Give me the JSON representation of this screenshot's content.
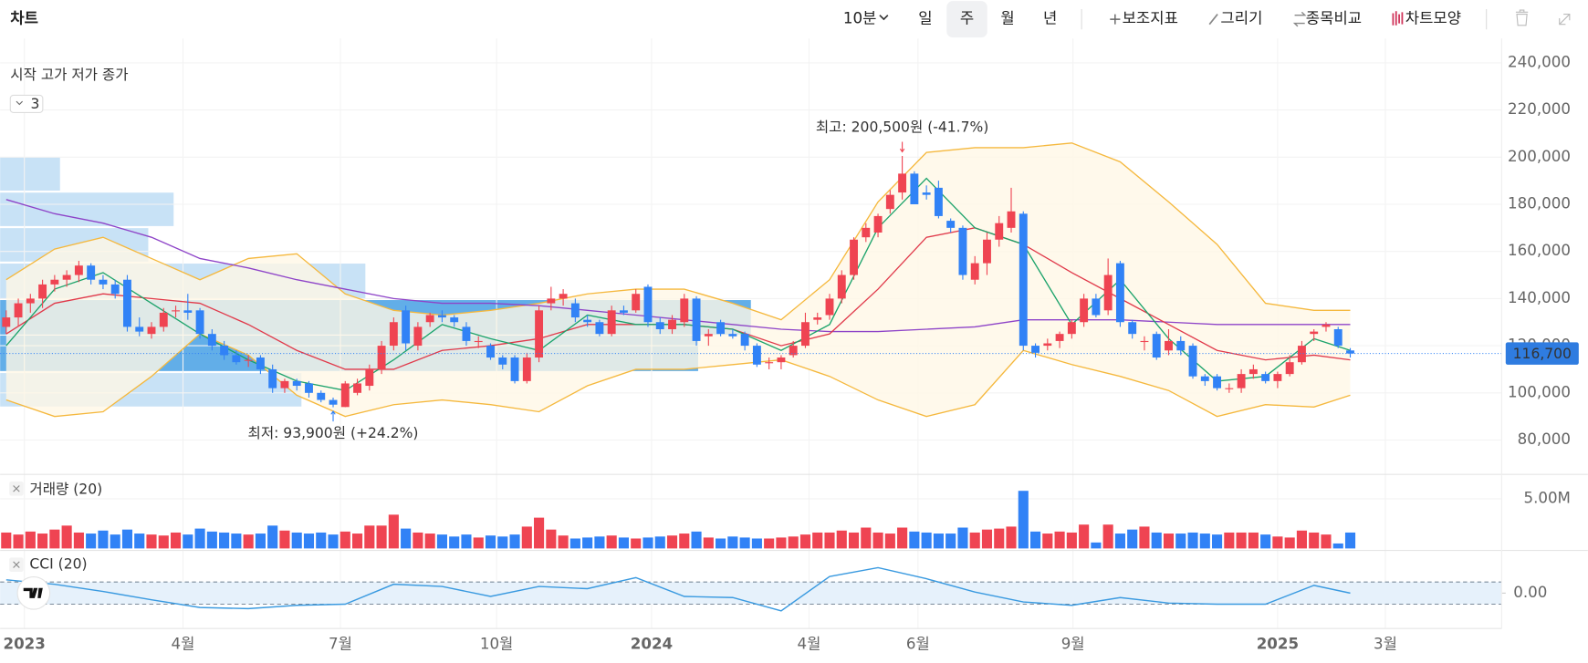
{
  "toolbar": {
    "title": "차트",
    "interval": "10분",
    "periods": [
      "일",
      "주",
      "월",
      "년"
    ],
    "tools": [
      "보조지표",
      "그리기",
      "종목비교",
      "차트모양"
    ]
  },
  "legend": {
    "fields": "시작 고가 저가 종가",
    "count": "3"
  },
  "chart_data": {
    "type": "candlestick",
    "up_color": "#ef4452",
    "down_color": "#3182f6",
    "xlim": [
      -0.5,
      123.5
    ],
    "xticks": [
      {
        "value": 1.5,
        "label": "2023"
      },
      {
        "value": 14.6,
        "label": "4월"
      },
      {
        "value": 27.6,
        "label": "7월"
      },
      {
        "value": 40.5,
        "label": "10월"
      },
      {
        "value": 53.3,
        "label": "2024"
      },
      {
        "value": 66.3,
        "label": "4월"
      },
      {
        "value": 75.3,
        "label": "6월"
      },
      {
        "value": 88.1,
        "label": "9월"
      },
      {
        "value": 105,
        "label": "2025"
      },
      {
        "value": 113.9,
        "label": "3월"
      }
    ],
    "ylim": [
      65400,
      243000
    ],
    "yticks": [
      {
        "value": 80000,
        "label": "80,000"
      },
      {
        "value": 100000,
        "label": "100,000"
      },
      {
        "value": 120000,
        "label": "120,000"
      },
      {
        "value": 140000,
        "label": "140,000"
      },
      {
        "value": 160000,
        "label": "160,000"
      },
      {
        "value": 180000,
        "label": "180,000"
      },
      {
        "value": 200000,
        "label": "200,000"
      },
      {
        "value": 220000,
        "label": "220,000"
      },
      {
        "value": 240000,
        "label": "240,000"
      }
    ],
    "grid": true,
    "ohlc": [
      [
        128000,
        135000,
        125000,
        132000
      ],
      [
        132000,
        140000,
        128000,
        138000
      ],
      [
        138000,
        142000,
        134000,
        140000
      ],
      [
        140000,
        148000,
        136000,
        146000
      ],
      [
        146000,
        150000,
        143000,
        148000
      ],
      [
        148000,
        152000,
        145000,
        150000
      ],
      [
        150000,
        156000,
        147000,
        154000
      ],
      [
        154000,
        155000,
        146000,
        148000
      ],
      [
        148000,
        150000,
        144000,
        146000
      ],
      [
        146000,
        148000,
        140000,
        142000
      ],
      [
        148000,
        150000,
        126000,
        128000
      ],
      [
        128000,
        132000,
        124000,
        126000
      ],
      [
        125000,
        130000,
        123000,
        128000
      ],
      [
        128000,
        136000,
        126000,
        134000
      ],
      [
        135000,
        137000,
        132000,
        135000
      ],
      [
        135000,
        142000,
        131000,
        134000
      ],
      [
        135000,
        136000,
        123000,
        125000
      ],
      [
        125000,
        127000,
        118000,
        120000
      ],
      [
        120000,
        122000,
        114000,
        116000
      ],
      [
        116000,
        118000,
        112000,
        113000
      ],
      [
        114000,
        116000,
        111000,
        114000
      ],
      [
        115000,
        116000,
        108000,
        110000
      ],
      [
        110000,
        112000,
        100000,
        102000
      ],
      [
        102000,
        106000,
        100000,
        105000
      ],
      [
        105000,
        106000,
        101000,
        103000
      ],
      [
        104000,
        105000,
        98000,
        100000
      ],
      [
        100000,
        101000,
        96000,
        97000
      ],
      [
        97000,
        98000,
        93900,
        95000
      ],
      [
        94000,
        105000,
        93950,
        104000
      ],
      [
        100000,
        106000,
        99000,
        104000
      ],
      [
        103000,
        112000,
        101000,
        110000
      ],
      [
        110000,
        122000,
        108000,
        120000
      ],
      [
        120000,
        132000,
        118000,
        130000
      ],
      [
        135000,
        137000,
        118000,
        121000
      ],
      [
        120000,
        130000,
        118000,
        128000
      ],
      [
        130000,
        134000,
        128000,
        133000
      ],
      [
        133000,
        135000,
        130000,
        132000
      ],
      [
        132000,
        133000,
        128000,
        130000
      ],
      [
        128000,
        130000,
        120000,
        122000
      ],
      [
        122000,
        124000,
        119000,
        122000
      ],
      [
        120000,
        121000,
        114000,
        115000
      ],
      [
        115000,
        116000,
        110000,
        112000
      ],
      [
        115000,
        116000,
        104000,
        105000
      ],
      [
        105000,
        117000,
        104000,
        115000
      ],
      [
        115000,
        137000,
        113000,
        135000
      ],
      [
        138000,
        145000,
        135000,
        140000
      ],
      [
        140000,
        144000,
        137000,
        142000
      ],
      [
        138000,
        140000,
        130000,
        132000
      ],
      [
        131000,
        133000,
        128000,
        130000
      ],
      [
        130000,
        131000,
        124000,
        125000
      ],
      [
        125000,
        137000,
        124000,
        135000
      ],
      [
        135000,
        137000,
        133000,
        134000
      ],
      [
        135000,
        144000,
        134000,
        142000
      ],
      [
        145000,
        146000,
        128000,
        130000
      ],
      [
        130000,
        132000,
        125000,
        127000
      ],
      [
        127000,
        133000,
        125000,
        131000
      ],
      [
        130000,
        142000,
        128000,
        140000
      ],
      [
        140000,
        141000,
        120000,
        122000
      ],
      [
        124000,
        127000,
        120000,
        125000
      ],
      [
        130000,
        131000,
        124000,
        125000
      ],
      [
        125000,
        127000,
        123000,
        124000
      ],
      [
        125000,
        126000,
        118000,
        120000
      ],
      [
        120000,
        121000,
        111000,
        112000
      ],
      [
        113000,
        115000,
        110000,
        113000
      ],
      [
        113000,
        116000,
        110000,
        115000
      ],
      [
        116000,
        122000,
        115000,
        120000
      ],
      [
        120000,
        134000,
        119000,
        130000
      ],
      [
        131000,
        134000,
        129000,
        132000
      ],
      [
        133000,
        142000,
        131000,
        140000
      ],
      [
        140000,
        152000,
        138000,
        150000
      ],
      [
        150000,
        166000,
        148000,
        165000
      ],
      [
        166000,
        172000,
        164000,
        170000
      ],
      [
        168000,
        176000,
        166000,
        175000
      ],
      [
        178000,
        186000,
        176000,
        184000
      ],
      [
        185000,
        200500,
        182000,
        193000
      ],
      [
        193000,
        194000,
        180000,
        180000
      ],
      [
        185000,
        188000,
        182000,
        184000
      ],
      [
        187000,
        190000,
        174000,
        175000
      ],
      [
        173000,
        174000,
        168000,
        170000
      ],
      [
        170000,
        171000,
        148000,
        150000
      ],
      [
        148000,
        158000,
        146000,
        155000
      ],
      [
        155000,
        168000,
        150000,
        165000
      ],
      [
        165000,
        175000,
        162000,
        172000
      ],
      [
        170000,
        187000,
        168000,
        177000
      ],
      [
        176000,
        177000,
        118000,
        120000
      ],
      [
        120000,
        121000,
        115000,
        117000
      ],
      [
        120000,
        123000,
        118000,
        121000
      ],
      [
        122000,
        126000,
        119000,
        125000
      ],
      [
        125000,
        131000,
        123000,
        130000
      ],
      [
        130000,
        142000,
        128000,
        140000
      ],
      [
        140000,
        142000,
        132000,
        133000
      ],
      [
        135000,
        157000,
        133000,
        150000
      ],
      [
        155000,
        156000,
        128000,
        130000
      ],
      [
        130000,
        131000,
        123000,
        125000
      ],
      [
        122000,
        124000,
        118000,
        122000
      ],
      [
        125000,
        126000,
        114000,
        115000
      ],
      [
        118000,
        127000,
        116000,
        122000
      ],
      [
        122000,
        124000,
        116000,
        118000
      ],
      [
        120000,
        121000,
        106000,
        107000
      ],
      [
        107000,
        108000,
        103000,
        105000
      ],
      [
        107000,
        108000,
        101000,
        102000
      ],
      [
        102000,
        104000,
        100000,
        102000
      ],
      [
        102000,
        110000,
        100000,
        108000
      ],
      [
        108000,
        112000,
        106000,
        110000
      ],
      [
        108000,
        109000,
        104000,
        105000
      ],
      [
        105000,
        109000,
        102000,
        108000
      ],
      [
        108000,
        116000,
        107000,
        113000
      ],
      [
        113000,
        122000,
        112000,
        120000
      ],
      [
        125000,
        127000,
        122000,
        126000
      ],
      [
        128000,
        130000,
        126000,
        129000
      ],
      [
        127000,
        128000,
        119000,
        120000
      ],
      [
        118000,
        119000,
        115000,
        116700
      ]
    ],
    "overlay_x": [
      0,
      4,
      8,
      12,
      16,
      20,
      24,
      28,
      32,
      36,
      40,
      44,
      48,
      52,
      56,
      60,
      64,
      68,
      72,
      76,
      80,
      84,
      88,
      92,
      96,
      100,
      104,
      108,
      111
    ],
    "bollinger": {
      "color": "#f5b83d",
      "fill": "#fff8e6",
      "upper": [
        148000,
        161000,
        166000,
        157000,
        148000,
        157000,
        159000,
        142000,
        135000,
        133000,
        135000,
        138000,
        142000,
        144000,
        144000,
        138000,
        131000,
        148000,
        181000,
        202000,
        204000,
        204000,
        206000,
        198000,
        181000,
        163000,
        138000,
        135000,
        135000
      ],
      "lower": [
        97000,
        90000,
        92000,
        107000,
        125000,
        116000,
        99000,
        90000,
        95000,
        97000,
        95000,
        92000,
        103000,
        110000,
        110000,
        112000,
        114000,
        107000,
        97000,
        90000,
        95000,
        118000,
        112000,
        107000,
        101000,
        90000,
        95000,
        94000,
        99000
      ]
    },
    "moving_averages": [
      {
        "color": "#8e44c8",
        "values": [
          182000,
          176000,
          172000,
          166000,
          157000,
          153000,
          148000,
          144000,
          140000,
          138000,
          138000,
          137000,
          135000,
          133000,
          131000,
          129000,
          127000,
          126000,
          126000,
          127000,
          128000,
          131000,
          131000,
          131000,
          130000,
          129000,
          129000,
          129000,
          129000
        ]
      },
      {
        "color": "#e0394a",
        "values": [
          125000,
          138000,
          142000,
          140000,
          138000,
          129000,
          118000,
          110000,
          110000,
          118000,
          120000,
          123000,
          129000,
          129000,
          129000,
          127000,
          120000,
          125000,
          144000,
          166000,
          170000,
          163000,
          151000,
          140000,
          129000,
          118000,
          114000,
          116000,
          114000
        ]
      },
      {
        "color": "#1ca36b",
        "values": [
          120000,
          144000,
          151000,
          138000,
          125000,
          114000,
          105000,
          101000,
          114000,
          129000,
          123000,
          118000,
          133000,
          129000,
          129000,
          127000,
          118000,
          129000,
          170000,
          191000,
          170000,
          163000,
          129000,
          148000,
          123000,
          105000,
          107000,
          123000,
          118000
        ]
      }
    ],
    "last_price": {
      "value": 116700,
      "label": "116,700"
    },
    "annotations": {
      "high": "최고: 200,500원 (-41.7%)",
      "low": "최저: 93,900원 (+24.2%)"
    },
    "volume": {
      "title": "거래량 (20)",
      "ylim": [
        0,
        7450000
      ],
      "yticks": [
        {
          "value": 5000000,
          "label": "5.00M"
        }
      ],
      "values": [
        1600000,
        1400000,
        1700000,
        1500000,
        1900000,
        2300000,
        1600000,
        1500000,
        1800000,
        1400000,
        1900000,
        1500000,
        1400000,
        1300000,
        1600000,
        1400000,
        2000000,
        1700000,
        1600000,
        1500000,
        1400000,
        1500000,
        2300000,
        1800000,
        1600000,
        1500000,
        1600000,
        1400000,
        1700000,
        1500000,
        2300000,
        2300000,
        3400000,
        2000000,
        1600000,
        1500000,
        1400000,
        1200000,
        1400000,
        1100000,
        1300000,
        1200000,
        1400000,
        2200000,
        3100000,
        1900000,
        1300000,
        1000000,
        1100000,
        1200000,
        1300000,
        1100000,
        1000000,
        1100000,
        1200000,
        1300000,
        1500000,
        1700000,
        1100000,
        1000000,
        1200000,
        1100000,
        1000000,
        1000000,
        1100000,
        1200000,
        1400000,
        1600000,
        1600000,
        1800000,
        1600000,
        2100000,
        1600000,
        1500000,
        2100000,
        1700000,
        1600000,
        1500000,
        1500000,
        2100000,
        1600000,
        1900000,
        2000000,
        2200000,
        5800000,
        1700000,
        1500000,
        1700000,
        1600000,
        2400000,
        600000,
        2400000,
        1500000,
        1900000,
        2200000,
        1600000,
        1500000,
        1500000,
        1600000,
        1500000,
        1400000,
        1600000,
        1600000,
        1600000,
        1400000,
        1200000,
        1100000,
        1800000,
        1600000,
        1400000,
        500000,
        1600000
      ]
    },
    "cci": {
      "title": "CCI (20)",
      "color": "#3a9ae0",
      "ylim": [
        -320,
        367
      ],
      "yticks": [
        {
          "value": 0,
          "label": "0.00"
        }
      ],
      "levels": [
        -100,
        100
      ],
      "values": [
        120,
        80,
        15,
        -60,
        -130,
        -140,
        -110,
        -100,
        80,
        60,
        -30,
        60,
        40,
        140,
        -30,
        -40,
        -160,
        150,
        230,
        130,
        10,
        -80,
        -110,
        -40,
        -90,
        -100,
        -100,
        70,
        0
      ]
    }
  }
}
